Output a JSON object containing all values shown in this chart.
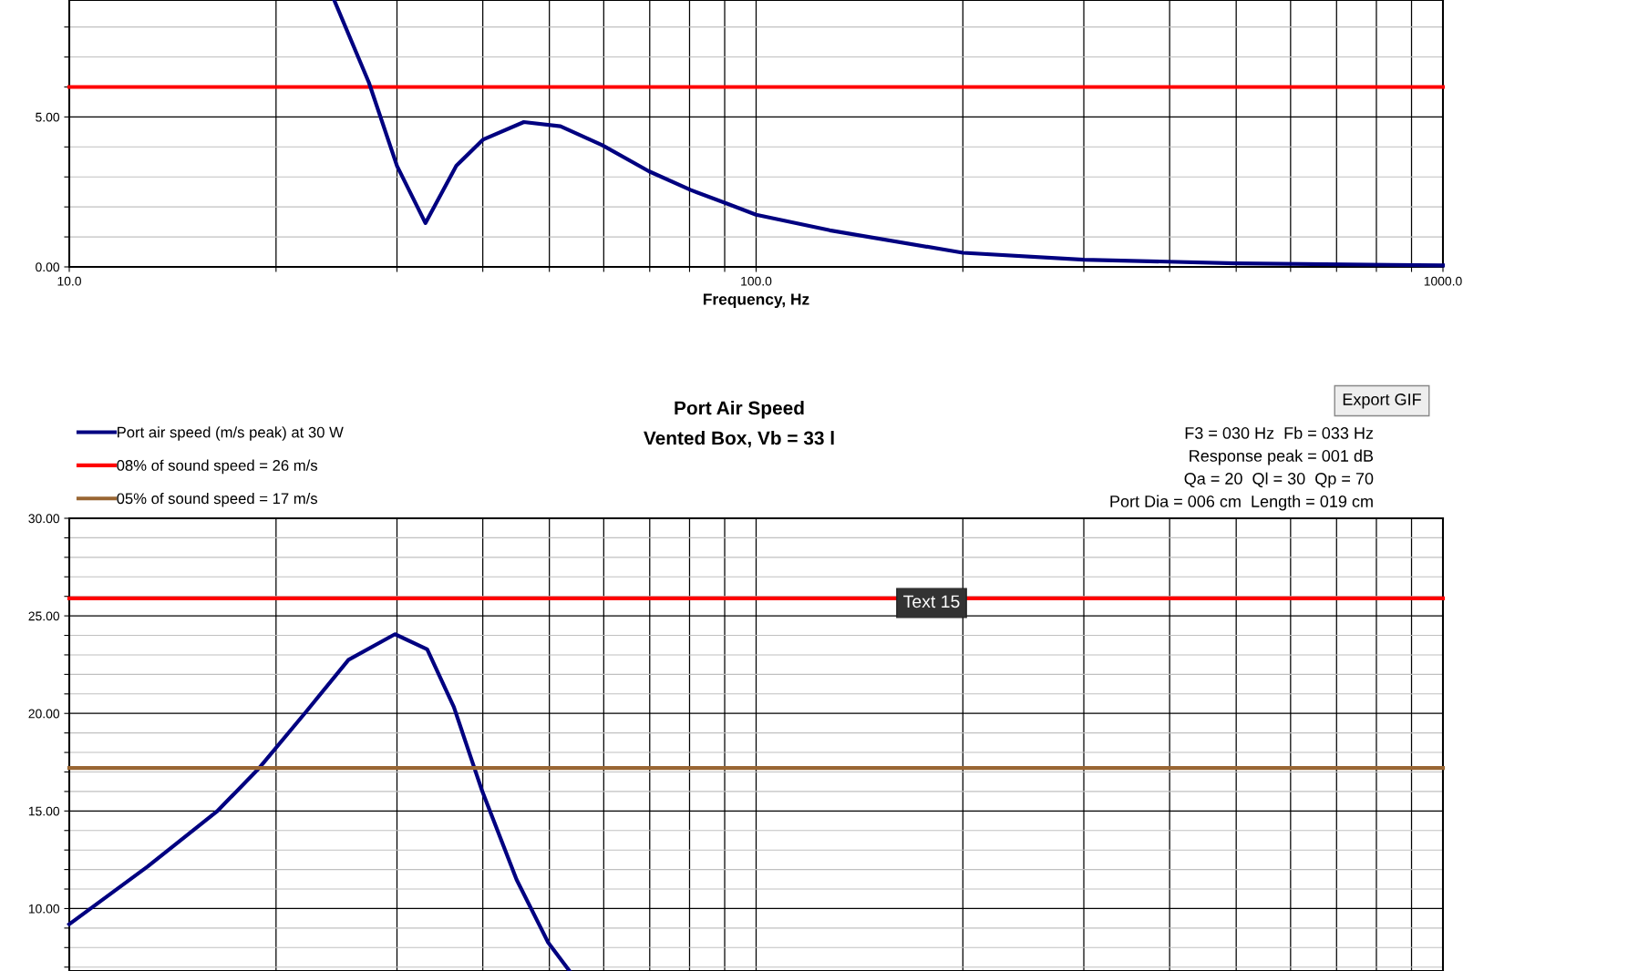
{
  "chart_data": [
    {
      "type": "line",
      "xlabel": "Frequency, Hz",
      "log": "x",
      "grid": true,
      "marker": "none",
      "line_style": "solid",
      "legend": false,
      "xlim": [
        10,
        1000
      ],
      "ylim": [
        0,
        8.9
      ],
      "xticks": [
        {
          "value": 10,
          "label": "10.0"
        },
        {
          "value": 20,
          "label": null
        },
        {
          "value": 30,
          "label": null
        },
        {
          "value": 40,
          "label": null
        },
        {
          "value": 50,
          "label": null
        },
        {
          "value": 60,
          "label": null
        },
        {
          "value": 70,
          "label": null
        },
        {
          "value": 80,
          "label": null
        },
        {
          "value": 90,
          "label": null
        },
        {
          "value": 100,
          "label": "100.0"
        },
        {
          "value": 200,
          "label": null
        },
        {
          "value": 300,
          "label": null
        },
        {
          "value": 400,
          "label": null
        },
        {
          "value": 500,
          "label": null
        },
        {
          "value": 600,
          "label": null
        },
        {
          "value": 700,
          "label": null
        },
        {
          "value": 800,
          "label": null
        },
        {
          "value": 900,
          "label": null
        },
        {
          "value": 1000,
          "label": "1000.0"
        }
      ],
      "yticks": [
        {
          "value": 0,
          "label": "0.00"
        },
        {
          "value": 1,
          "label": null
        },
        {
          "value": 2,
          "label": null
        },
        {
          "value": 3,
          "label": null
        },
        {
          "value": 4,
          "label": null
        },
        {
          "value": 5,
          "label": "5.00"
        },
        {
          "value": 6,
          "label": null
        },
        {
          "value": 7,
          "label": null
        },
        {
          "value": 8,
          "label": null
        }
      ],
      "series": [
        {
          "color": "#ff0000",
          "x": [
            10,
            1000
          ],
          "values": [
            6.0,
            6.0
          ]
        },
        {
          "color": "#000080",
          "x": [
            24.3,
            27.3,
            30.0,
            33.0,
            36.6,
            40.0,
            45.9,
            51.9,
            59.7,
            69.8,
            80.2,
            90.5,
            100,
            128,
            200,
            300,
            500,
            1000
          ],
          "values": [
            8.9,
            6.15,
            3.37,
            1.46,
            3.37,
            4.24,
            4.83,
            4.69,
            4.06,
            3.19,
            2.57,
            2.12,
            1.74,
            1.22,
            0.47,
            0.24,
            0.12,
            0.05
          ]
        }
      ]
    },
    {
      "type": "line",
      "title": "Port Air Speed\nVented Box, Vb = 33 l",
      "log": "x",
      "grid": true,
      "marker": "none",
      "line_style": "solid",
      "legend": "top left",
      "tick_labels": "y",
      "xlim": [
        10,
        1000
      ],
      "ylim": [
        6.8,
        30
      ],
      "xticks": [
        {
          "value": 10,
          "label": null
        },
        {
          "value": 20,
          "label": null
        },
        {
          "value": 30,
          "label": null
        },
        {
          "value": 40,
          "label": null
        },
        {
          "value": 50,
          "label": null
        },
        {
          "value": 60,
          "label": null
        },
        {
          "value": 70,
          "label": null
        },
        {
          "value": 80,
          "label": null
        },
        {
          "value": 90,
          "label": null
        },
        {
          "value": 100,
          "label": null
        },
        {
          "value": 200,
          "label": null
        },
        {
          "value": 300,
          "label": null
        },
        {
          "value": 400,
          "label": null
        },
        {
          "value": 500,
          "label": null
        },
        {
          "value": 600,
          "label": null
        },
        {
          "value": 700,
          "label": null
        },
        {
          "value": 800,
          "label": null
        },
        {
          "value": 900,
          "label": null
        },
        {
          "value": 1000,
          "label": null
        }
      ],
      "yticks": [
        {
          "value": 7,
          "label": null
        },
        {
          "value": 8,
          "label": null
        },
        {
          "value": 9,
          "label": null
        },
        {
          "value": 10,
          "label": "10.00"
        },
        {
          "value": 11,
          "label": null
        },
        {
          "value": 12,
          "label": null
        },
        {
          "value": 13,
          "label": null
        },
        {
          "value": 14,
          "label": null
        },
        {
          "value": 15,
          "label": "15.00"
        },
        {
          "value": 16,
          "label": null
        },
        {
          "value": 17,
          "label": null
        },
        {
          "value": 18,
          "label": null
        },
        {
          "value": 19,
          "label": null
        },
        {
          "value": 20,
          "label": "20.00"
        },
        {
          "value": 21,
          "label": null
        },
        {
          "value": 22,
          "label": null
        },
        {
          "value": 23,
          "label": null
        },
        {
          "value": 24,
          "label": null
        },
        {
          "value": 25,
          "label": "25.00"
        },
        {
          "value": 26,
          "label": null
        },
        {
          "value": 27,
          "label": null
        },
        {
          "value": 28,
          "label": null
        },
        {
          "value": 29,
          "label": null
        },
        {
          "value": 30,
          "label": "30.00"
        }
      ],
      "series": [
        {
          "name": "Port air speed (m/s peak) at 30 W",
          "color": "#000080",
          "x": [
            10,
            13.0,
            16.4,
            18.9,
            22.1,
            25.5,
            29.8,
            33.2,
            36.3,
            39.9,
            44.8,
            49.8,
            53.5
          ],
          "values": [
            9.2,
            12.15,
            14.97,
            17.2,
            20.07,
            22.75,
            24.06,
            23.28,
            20.33,
            16.04,
            11.48,
            8.26,
            6.8
          ]
        },
        {
          "name": "08% of sound speed = 26 m/s",
          "color": "#ff0000",
          "x": [
            10,
            1000
          ],
          "values": [
            25.9,
            25.9
          ]
        },
        {
          "name": "05% of sound speed = 17 m/s",
          "color": "#996633",
          "x": [
            10,
            1000
          ],
          "values": [
            17.2,
            17.2
          ]
        }
      ],
      "annotations": [
        "F3 = 030 Hz  Fb = 033 Hz",
        "Response peak = 001 dB",
        "Qa = 20  Ql = 30  Qp = 70",
        "Port Dia = 006 cm  Length = 019 cm",
        "Export GIF",
        "Text 15"
      ]
    }
  ]
}
